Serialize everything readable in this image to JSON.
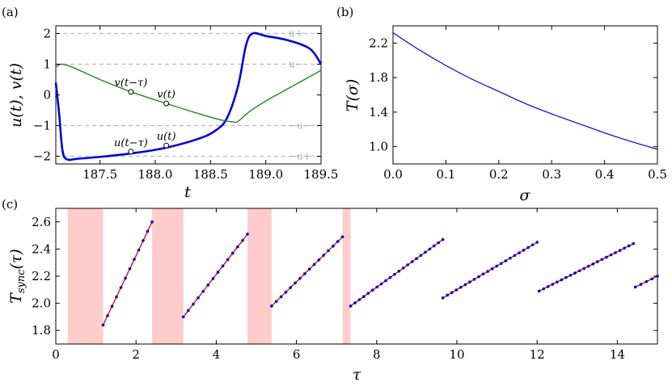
{
  "chart_data": [
    {
      "panel": "(a)",
      "type": "line",
      "xlabel": "t",
      "ylabel": "u(t), v(t)",
      "xlim": [
        187.1,
        189.5
      ],
      "ylim": [
        -2.25,
        2.25
      ],
      "xticks": [
        "187.5",
        "188.0",
        "188.5",
        "189.0",
        "189.5"
      ],
      "yticks": [
        "−2",
        "−1",
        "0",
        "1",
        "2"
      ],
      "reference_lines": [
        {
          "y": 2.0,
          "label": "u+"
        },
        {
          "y": 1.0,
          "label": "u−"
        },
        {
          "y": -1.0,
          "label": "−u−"
        },
        {
          "y": -2.0,
          "label": "−u+"
        }
      ],
      "series": [
        {
          "name": "u(t)",
          "color": "#0000dd",
          "x": [
            187.1,
            187.13,
            187.16,
            187.2,
            187.3,
            187.5,
            187.8,
            188.1,
            188.4,
            188.55,
            188.65,
            188.75,
            188.82,
            188.88,
            189.0,
            189.2,
            189.4,
            189.5
          ],
          "y": [
            0.4,
            -0.6,
            -1.8,
            -2.1,
            -2.08,
            -2.02,
            -1.9,
            -1.72,
            -1.42,
            -1.15,
            -0.75,
            0.3,
            1.6,
            2.0,
            1.92,
            1.78,
            1.5,
            1.0
          ]
        },
        {
          "name": "v(t)",
          "color": "#1a8a1a",
          "x": [
            187.1,
            187.15,
            187.25,
            187.5,
            187.78,
            188.1,
            188.4,
            188.6,
            188.7,
            188.75,
            188.85,
            189.0,
            189.2,
            189.5
          ],
          "y": [
            0.9,
            1.0,
            0.9,
            0.5,
            0.1,
            -0.28,
            -0.62,
            -0.82,
            -0.88,
            -0.86,
            -0.55,
            -0.2,
            0.2,
            0.8
          ]
        }
      ],
      "annotations": [
        {
          "text": "v(t−τ)",
          "x": 187.78,
          "y": 0.1
        },
        {
          "text": "v(t)",
          "x": 188.1,
          "y": -0.28
        },
        {
          "text": "u(t−τ)",
          "x": 187.78,
          "y": -1.85
        },
        {
          "text": "u(t)",
          "x": 188.1,
          "y": -1.65
        }
      ]
    },
    {
      "panel": "(b)",
      "type": "line",
      "xlabel": "σ",
      "ylabel": "T(σ)",
      "xlim": [
        0.0,
        0.5
      ],
      "ylim": [
        0.8,
        2.4
      ],
      "xticks": [
        "0.0",
        "0.1",
        "0.2",
        "0.3",
        "0.4",
        "0.5"
      ],
      "yticks": [
        "1.0",
        "1.4",
        "1.8",
        "2.2"
      ],
      "series": [
        {
          "name": "T(σ)",
          "color": "#0000ee",
          "x": [
            0.0,
            0.05,
            0.1,
            0.15,
            0.2,
            0.25,
            0.3,
            0.35,
            0.4,
            0.45,
            0.5
          ],
          "y": [
            2.32,
            2.12,
            1.94,
            1.78,
            1.64,
            1.5,
            1.38,
            1.27,
            1.16,
            1.06,
            0.97
          ]
        }
      ]
    },
    {
      "panel": "(c)",
      "type": "scatter",
      "xlabel": "τ",
      "ylabel": "Tsync(τ)",
      "xlim": [
        0,
        15
      ],
      "ylim": [
        1.7,
        2.7
      ],
      "xticks": [
        "0",
        "2",
        "4",
        "6",
        "8",
        "10",
        "12",
        "14"
      ],
      "yticks": [
        "1.8",
        "2.0",
        "2.2",
        "2.4",
        "2.6"
      ],
      "shaded_intervals": [
        [
          0.3,
          1.18
        ],
        [
          2.4,
          3.18
        ],
        [
          4.78,
          5.38
        ],
        [
          7.15,
          7.35
        ]
      ],
      "line_color": "#dd0000",
      "point_color": "#0000cc",
      "branches": [
        {
          "x0": 1.18,
          "x1": 2.4,
          "y0": 1.84,
          "y1": 2.6,
          "n": 12
        },
        {
          "x0": 3.18,
          "x1": 4.78,
          "y0": 1.9,
          "y1": 2.51,
          "n": 14
        },
        {
          "x0": 5.38,
          "x1": 7.15,
          "y0": 1.98,
          "y1": 2.49,
          "n": 16
        },
        {
          "x0": 7.35,
          "x1": 9.65,
          "y0": 1.98,
          "y1": 2.47,
          "n": 22
        },
        {
          "x0": 9.65,
          "x1": 12.0,
          "y0": 2.04,
          "y1": 2.45,
          "n": 22
        },
        {
          "x0": 12.05,
          "x1": 14.4,
          "y0": 2.09,
          "y1": 2.44,
          "n": 22
        },
        {
          "x0": 14.45,
          "x1": 15.0,
          "y0": 2.12,
          "y1": 2.2,
          "n": 5
        }
      ]
    }
  ]
}
